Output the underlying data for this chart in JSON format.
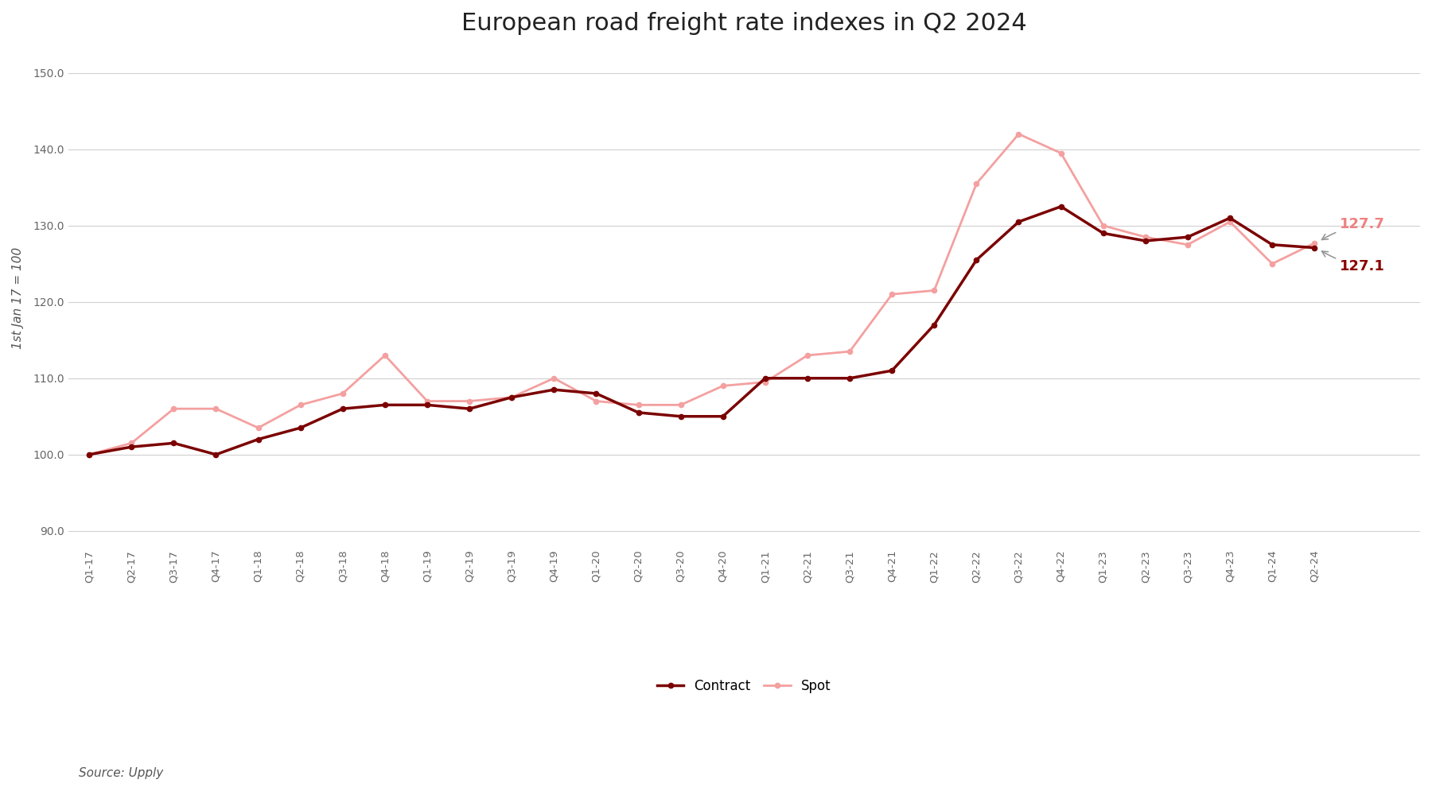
{
  "title": "European road freight rate indexes in Q2 2024",
  "ylabel": "1st Jan 17 = 100",
  "source": "Source: Upply",
  "ylim": [
    88,
    153
  ],
  "yticks": [
    90.0,
    100.0,
    110.0,
    120.0,
    130.0,
    140.0,
    150.0
  ],
  "x_labels": [
    "Q1-17",
    "Q2-17",
    "Q3-17",
    "Q4-17",
    "Q1-18",
    "Q2-18",
    "Q3-18",
    "Q4-18",
    "Q1-19",
    "Q2-19",
    "Q3-19",
    "Q4-19",
    "Q1-20",
    "Q2-20",
    "Q3-20",
    "Q4-20",
    "Q1-21",
    "Q2-21",
    "Q3-21",
    "Q4-21",
    "Q1-22",
    "Q2-22",
    "Q3-22",
    "Q4-22",
    "Q1-23",
    "Q2-23",
    "Q3-23",
    "Q4-23",
    "Q1-24",
    "Q2-24"
  ],
  "contract": [
    100.0,
    101.0,
    101.5,
    100.0,
    102.0,
    103.5,
    106.0,
    106.5,
    106.5,
    106.0,
    107.5,
    108.5,
    108.0,
    105.5,
    105.0,
    105.0,
    110.0,
    110.0,
    110.0,
    111.0,
    117.0,
    125.5,
    130.5,
    132.5,
    129.0,
    128.0,
    128.5,
    131.0,
    127.5,
    127.1
  ],
  "spot": [
    100.0,
    101.5,
    106.0,
    106.0,
    103.5,
    106.5,
    108.0,
    113.0,
    107.0,
    107.0,
    107.5,
    110.0,
    107.0,
    106.5,
    106.5,
    109.0,
    109.5,
    113.0,
    113.5,
    121.0,
    121.5,
    135.5,
    142.0,
    139.5,
    130.0,
    128.5,
    127.5,
    130.5,
    125.0,
    127.7
  ],
  "contract_color": "#7B0000",
  "spot_color": "#F4A0A0",
  "annotation_spot": "127.7",
  "annotation_contract": "127.1",
  "annotation_spot_color": "#F08080",
  "annotation_contract_color": "#8B0000",
  "bg_color": "#FFFFFF",
  "grid_color": "#D0D0D0",
  "legend_contract": "Contract",
  "legend_spot": "Spot"
}
